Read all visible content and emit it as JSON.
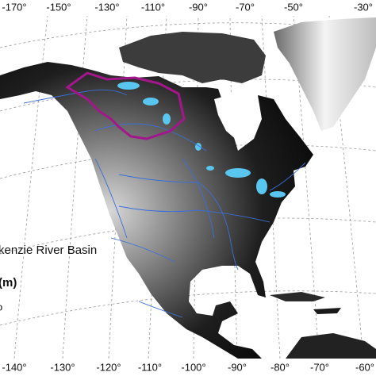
{
  "top_labels": [
    "-170°",
    "-150°",
    "-130°",
    "-110°",
    "-90°",
    "-70°",
    "-50°",
    "-30°"
  ],
  "bottom_labels": [
    "-140°",
    "-130°",
    "-120°",
    "-110°",
    "-100°",
    "-90°",
    "-80°",
    "-70°",
    "-60°"
  ],
  "legend": {
    "basin_label": "kenzie River Basin",
    "elevation_title": "(m)",
    "elevation_value": "o"
  }
}
